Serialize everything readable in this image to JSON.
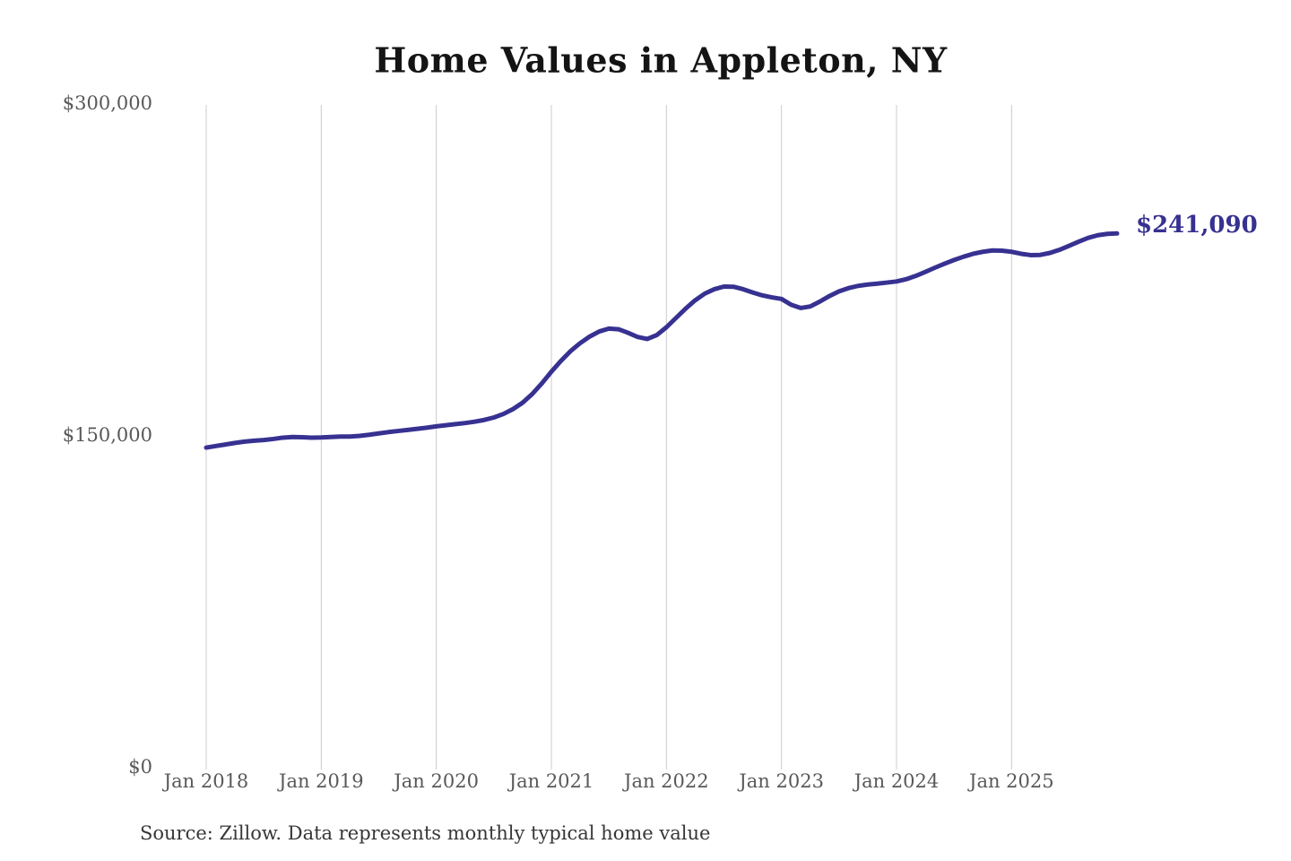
{
  "chart_data": {
    "type": "line",
    "title": "Home Values in Appleton, NY",
    "xlabel": "",
    "ylabel": "",
    "ylim": [
      0,
      300000
    ],
    "y_tick_labels": [
      "$300,000",
      "$150,000",
      "$0"
    ],
    "y_tick_values": [
      300000,
      150000,
      0
    ],
    "x_tick_labels": [
      "Jan 2018",
      "Jan 2019",
      "Jan 2020",
      "Jan 2021",
      "Jan 2022",
      "Jan 2023",
      "Jan 2024",
      "Jan 2025"
    ],
    "grid": "vertical-only",
    "legend": "none",
    "line_color": "#373191",
    "grid_color": "#cccccc",
    "end_label": "$241,090",
    "end_value": 241090,
    "frequency": "monthly",
    "x_start": "Jan 2018",
    "x_end": "Dec 2025",
    "series": [
      {
        "name": "Typical home value",
        "values": [
          144300,
          145000,
          145700,
          146400,
          147000,
          147400,
          147700,
          148200,
          148800,
          149100,
          149000,
          148800,
          148900,
          149100,
          149300,
          149300,
          149600,
          150100,
          150700,
          151300,
          151800,
          152300,
          152800,
          153300,
          153900,
          154400,
          154900,
          155400,
          156000,
          156800,
          157900,
          159500,
          161700,
          164600,
          168500,
          173300,
          178600,
          183500,
          187900,
          191500,
          194500,
          196800,
          198100,
          197800,
          196200,
          194300,
          193400,
          195200,
          198700,
          202900,
          207100,
          210900,
          213900,
          215900,
          217100,
          217000,
          215900,
          214400,
          213100,
          212200,
          211500,
          208900,
          207400,
          208100,
          210300,
          212800,
          214900,
          216400,
          217400,
          218000,
          218400,
          218900,
          219400,
          220400,
          221900,
          223700,
          225600,
          227400,
          229100,
          230600,
          231900,
          232800,
          233400,
          233300,
          232800,
          231900,
          231300,
          231400,
          232300,
          233700,
          235500,
          237400,
          239100,
          240300,
          240900,
          241090
        ]
      }
    ]
  },
  "annotations": {
    "source_note": "Source: Zillow. Data represents monthly typical home value"
  }
}
